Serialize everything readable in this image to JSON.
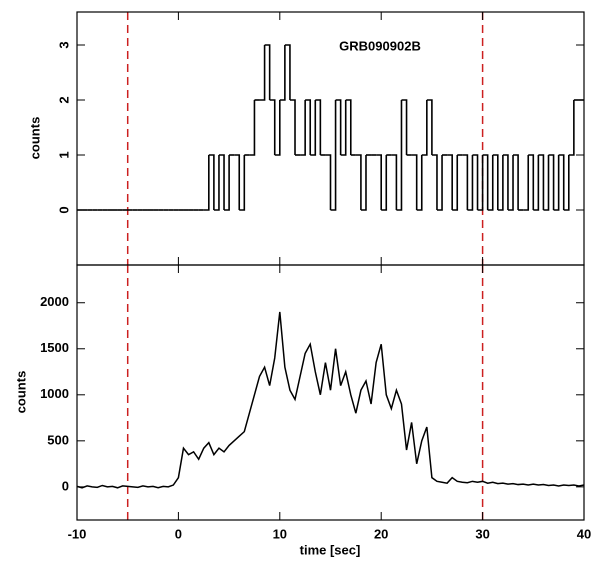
{
  "chart_data": [
    {
      "type": "step",
      "annotation": "GRB090902B",
      "y_label": "counts",
      "x": [
        -10,
        -9.5,
        -9,
        -8.5,
        -8,
        -7.5,
        -7,
        -6.5,
        -6,
        -5.5,
        -5,
        -4.5,
        -4,
        -3.5,
        -3,
        -2.5,
        -2,
        -1.5,
        -1,
        -0.5,
        0,
        0.5,
        1,
        1.5,
        2,
        2.5,
        3,
        3.5,
        4,
        4.5,
        5,
        5.5,
        6,
        6.5,
        7,
        7.5,
        8,
        8.5,
        9,
        9.5,
        10,
        10.5,
        11,
        11.5,
        12,
        12.5,
        13,
        13.5,
        14,
        14.5,
        15,
        15.5,
        16,
        16.5,
        17,
        17.5,
        18,
        18.5,
        19,
        19.5,
        20,
        20.5,
        21,
        21.5,
        22,
        22.5,
        23,
        23.5,
        24,
        24.5,
        25,
        25.5,
        26,
        26.5,
        27,
        27.5,
        28,
        28.5,
        29,
        29.5,
        30,
        30.5,
        31,
        31.5,
        32,
        32.5,
        33,
        33.5,
        34,
        34.5,
        35,
        35.5,
        36,
        36.5,
        37,
        37.5,
        38,
        38.5,
        39,
        39.5
      ],
      "values": [
        0,
        0,
        0,
        0,
        0,
        0,
        0,
        0,
        0,
        0,
        0,
        0,
        0,
        0,
        0,
        0,
        0,
        0,
        0,
        0,
        0,
        0,
        0,
        0,
        0,
        0,
        1,
        0,
        1,
        0,
        1,
        1,
        0,
        1,
        1,
        2,
        2,
        3,
        2,
        1,
        2,
        3,
        2,
        1,
        1,
        2,
        1,
        2,
        1,
        1,
        0,
        2,
        1,
        2,
        1,
        1,
        0,
        1,
        1,
        1,
        0,
        1,
        1,
        0,
        2,
        1,
        1,
        0,
        1,
        2,
        1,
        0,
        1,
        1,
        0,
        1,
        1,
        0,
        1,
        0,
        1,
        0,
        1,
        0,
        1,
        0,
        1,
        0,
        0,
        1,
        0,
        1,
        0,
        1,
        0,
        1,
        0,
        1,
        2,
        2
      ],
      "color": "#000000",
      "xlim": [
        -10,
        40
      ],
      "xticks": [
        -10,
        0,
        10,
        20,
        30,
        40
      ],
      "ylim": [
        -1,
        3.6
      ],
      "yticks": [
        0,
        1,
        2,
        3
      ],
      "vlines": [
        -5,
        30
      ],
      "vline_color": "#cc2020"
    },
    {
      "type": "line",
      "x_label": "time [sec]",
      "y_label": "counts",
      "x": [
        -10,
        -9.5,
        -9,
        -8.5,
        -8,
        -7.5,
        -7,
        -6.5,
        -6,
        -5.5,
        -5,
        -4.5,
        -4,
        -3.5,
        -3,
        -2.5,
        -2,
        -1.5,
        -1,
        -0.5,
        0,
        0.5,
        1,
        1.5,
        2,
        2.5,
        3,
        3.5,
        4,
        4.5,
        5,
        5.5,
        6,
        6.5,
        7,
        7.5,
        8,
        8.5,
        9,
        9.5,
        10,
        10.5,
        11,
        11.5,
        12,
        12.5,
        13,
        13.5,
        14,
        14.5,
        15,
        15.5,
        16,
        16.5,
        17,
        17.5,
        18,
        18.5,
        19,
        19.5,
        20,
        20.5,
        21,
        21.5,
        22,
        22.5,
        23,
        23.5,
        24,
        24.5,
        25,
        25.5,
        26,
        26.5,
        27,
        27.5,
        28,
        28.5,
        29,
        29.5,
        30,
        30.5,
        31,
        31.5,
        32,
        32.5,
        33,
        33.5,
        34,
        34.5,
        35,
        35.5,
        36,
        36.5,
        37,
        37.5,
        38,
        38.5,
        39,
        39.5,
        40
      ],
      "values": [
        5,
        -10,
        10,
        0,
        -5,
        15,
        0,
        5,
        -10,
        10,
        5,
        0,
        -5,
        10,
        0,
        5,
        -10,
        5,
        0,
        20,
        100,
        420,
        350,
        380,
        300,
        420,
        480,
        350,
        420,
        380,
        450,
        500,
        550,
        600,
        800,
        1000,
        1200,
        1300,
        1100,
        1400,
        1900,
        1300,
        1050,
        950,
        1200,
        1450,
        1550,
        1250,
        1000,
        1350,
        1050,
        1500,
        1100,
        1250,
        1000,
        800,
        1050,
        1150,
        900,
        1350,
        1550,
        1000,
        850,
        1050,
        900,
        400,
        700,
        250,
        500,
        650,
        100,
        60,
        50,
        40,
        100,
        60,
        50,
        45,
        60,
        50,
        60,
        40,
        50,
        35,
        40,
        30,
        35,
        25,
        30,
        20,
        30,
        20,
        25,
        15,
        20,
        10,
        20,
        15,
        20,
        10,
        20
      ],
      "color": "#000000",
      "xlim": [
        -10,
        40
      ],
      "xticks": [
        -10,
        0,
        10,
        20,
        30,
        40
      ],
      "ylim": [
        -360,
        2410
      ],
      "yticks": [
        0,
        500,
        1000,
        1500,
        2000
      ],
      "vlines": [
        -5,
        30
      ],
      "vline_color": "#cc2020"
    }
  ]
}
